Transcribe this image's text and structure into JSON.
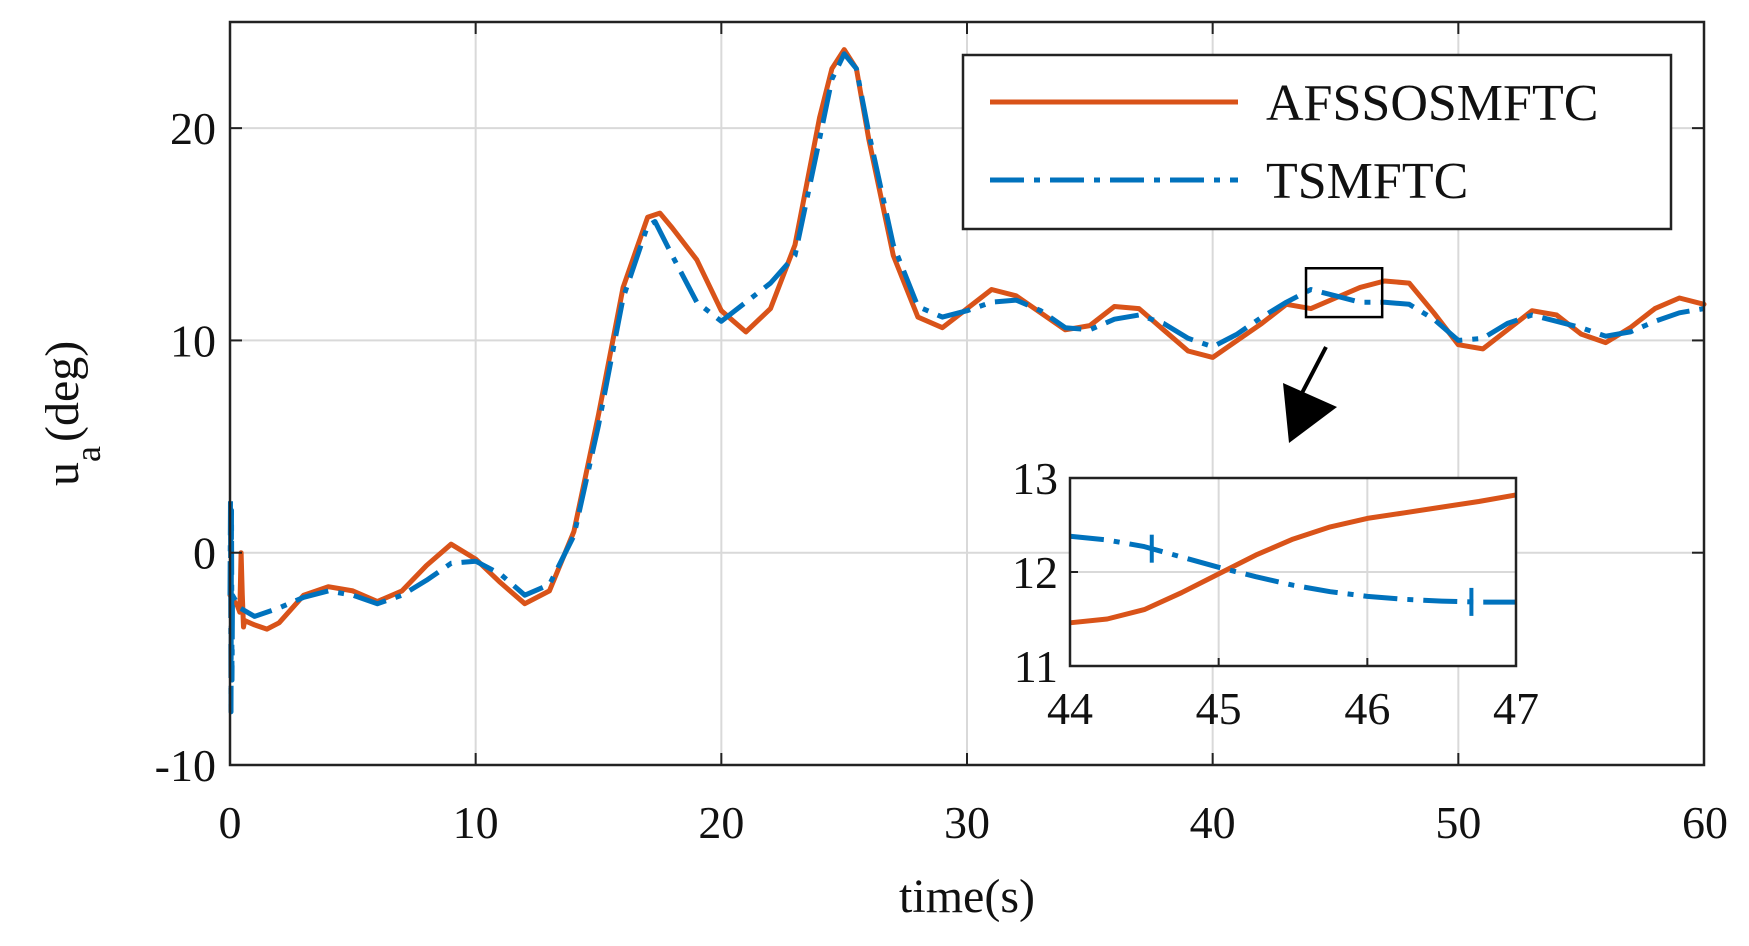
{
  "chart_data": {
    "type": "line",
    "xlabel": "time(s)",
    "ylabel_main": "u",
    "ylabel_sub": "a",
    "ylabel_unit": "(deg)",
    "xlim": [
      0,
      60
    ],
    "ylim": [
      -10,
      25
    ],
    "xticks": [
      "0",
      "10",
      "20",
      "30",
      "40",
      "50",
      "60"
    ],
    "yticks": [
      "-10",
      "0",
      "10",
      "20"
    ],
    "grid": true,
    "legend": {
      "placement": "top-right",
      "entries": [
        "AFSSOSMFTC",
        "TSMFTC"
      ]
    },
    "series": [
      {
        "name": "AFSSOSMFTC",
        "color": "#D95319",
        "style": "solid",
        "x": [
          0,
          0.3,
          0.4,
          0.45,
          0.5,
          0.55,
          0.6,
          0.8,
          1,
          1.5,
          2,
          3,
          4,
          5,
          6,
          7,
          8,
          9,
          10,
          11,
          12,
          13,
          14,
          15,
          16,
          17,
          17.5,
          18,
          19,
          20,
          21,
          22,
          23,
          24,
          24.5,
          25,
          25.5,
          26,
          27,
          28,
          29,
          30,
          31,
          32,
          33,
          34,
          35,
          36,
          37,
          38,
          39,
          40,
          41,
          42,
          43,
          44,
          45,
          46,
          47,
          48,
          49,
          50,
          51,
          52,
          53,
          54,
          55,
          56,
          57,
          58,
          59,
          60
        ],
        "y": [
          -2,
          -2.5,
          -2.8,
          0,
          -2,
          -3.5,
          -3.2,
          -3.3,
          -3.4,
          -3.6,
          -3.3,
          -2.0,
          -1.6,
          -1.8,
          -2.3,
          -1.8,
          -0.6,
          0.4,
          -0.3,
          -1.4,
          -2.4,
          -1.8,
          1.0,
          6.5,
          12.5,
          15.8,
          16.0,
          15.3,
          13.8,
          11.4,
          10.4,
          11.5,
          14.5,
          20.5,
          22.8,
          23.7,
          22.8,
          19.5,
          14.0,
          11.1,
          10.6,
          11.5,
          12.4,
          12.1,
          11.3,
          10.5,
          10.7,
          11.6,
          11.5,
          10.5,
          9.5,
          9.2,
          10.0,
          10.8,
          11.7,
          11.5,
          12.0,
          12.5,
          12.8,
          12.7,
          11.3,
          9.8,
          9.6,
          10.5,
          11.4,
          11.2,
          10.3,
          9.9,
          10.6,
          11.5,
          12.0,
          11.7
        ]
      },
      {
        "name": "TSMFTC",
        "color": "#0072BD",
        "style": "dashdot",
        "x": [
          0,
          0.02,
          0.04,
          0.06,
          0.08,
          0.1,
          0.2,
          0.4,
          1,
          2,
          3,
          4,
          5,
          6,
          7,
          8,
          9,
          10,
          11,
          12,
          13,
          14,
          15,
          16,
          17,
          17.3,
          18,
          19,
          20,
          21,
          22,
          23,
          24,
          24.5,
          25,
          25.5,
          26,
          27,
          28,
          29,
          30,
          31,
          32,
          33,
          34,
          35,
          36,
          37,
          38,
          39,
          40,
          41,
          42,
          43,
          44,
          45,
          46,
          47,
          48,
          49,
          50,
          51,
          52,
          53,
          54,
          55,
          56,
          57,
          58,
          59,
          60
        ],
        "y": [
          -2,
          2.5,
          -7.5,
          2.0,
          -6.0,
          -2,
          -2.2,
          -2.6,
          -3.0,
          -2.6,
          -2.1,
          -1.8,
          -2.0,
          -2.4,
          -2.0,
          -1.3,
          -0.5,
          -0.4,
          -1.0,
          -2.0,
          -1.5,
          0.8,
          6.0,
          12.0,
          15.4,
          15.6,
          14.0,
          11.8,
          10.9,
          11.8,
          12.7,
          14.0,
          19.5,
          22.3,
          23.5,
          22.8,
          19.8,
          14.5,
          11.6,
          11.1,
          11.4,
          11.8,
          11.9,
          11.4,
          10.6,
          10.5,
          11.0,
          11.2,
          10.8,
          10.1,
          9.7,
          10.3,
          11.1,
          11.8,
          12.4,
          12.1,
          11.8,
          11.8,
          11.7,
          11.0,
          10.0,
          10.1,
          10.8,
          11.2,
          10.9,
          10.6,
          10.2,
          10.4,
          10.9,
          11.3,
          11.5
        ]
      }
    ],
    "inset": {
      "xlim": [
        44,
        47
      ],
      "ylim": [
        11,
        13
      ],
      "xticks": [
        "44",
        "45",
        "46",
        "47"
      ],
      "yticks": [
        "11",
        "12",
        "13"
      ],
      "zoom_box": {
        "x": [
          43.8,
          46.9
        ],
        "y": [
          11.1,
          13.4
        ]
      },
      "series": [
        {
          "name": "AFSSOSMFTC",
          "x": [
            44,
            44.25,
            44.5,
            44.75,
            45,
            45.25,
            45.5,
            45.75,
            46,
            46.25,
            46.5,
            46.75,
            47
          ],
          "y": [
            11.46,
            11.5,
            11.6,
            11.78,
            11.98,
            12.18,
            12.35,
            12.48,
            12.57,
            12.63,
            12.69,
            12.75,
            12.82
          ]
        },
        {
          "name": "TSMFTC",
          "x": [
            44,
            44.25,
            44.5,
            44.75,
            45,
            45.25,
            45.5,
            45.75,
            46,
            46.25,
            46.5,
            46.75,
            47
          ],
          "y": [
            12.38,
            12.34,
            12.27,
            12.16,
            12.05,
            11.95,
            11.86,
            11.79,
            11.74,
            11.71,
            11.69,
            11.68,
            11.68
          ]
        }
      ]
    }
  }
}
